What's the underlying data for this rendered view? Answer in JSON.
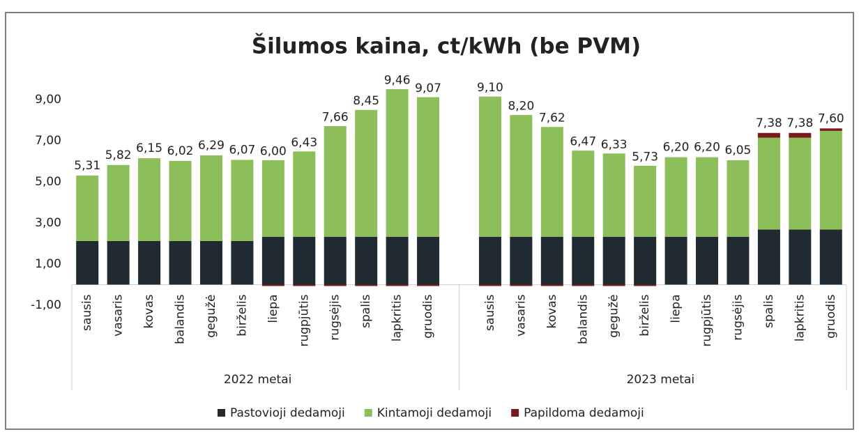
{
  "chart_data": {
    "type": "stacked_bar",
    "title": "Šilumos kaina, ct/kWh (be PVM)",
    "categories": [
      "sausis",
      "vasaris",
      "kovas",
      "balandis",
      "gegužė",
      "birželis",
      "liepa",
      "rugpjūtis",
      "rugsėjis",
      "spalis",
      "lapkritis",
      "gruodis",
      "sausis",
      "vasaris",
      "kovas",
      "balandis",
      "gegužė",
      "birželis",
      "liepa",
      "rugpjūtis",
      "rugsėjis",
      "spalis",
      "lapkritis",
      "gruodis"
    ],
    "groups": [
      "2022 metai",
      "2023 metai"
    ],
    "series": [
      {
        "name": "Pastovioji dedamoji",
        "color": "#1f2a33",
        "values": [
          2.12,
          2.12,
          2.12,
          2.12,
          2.12,
          2.12,
          2.33,
          2.33,
          2.33,
          2.33,
          2.33,
          2.33,
          2.33,
          2.33,
          2.33,
          2.33,
          2.33,
          2.33,
          2.33,
          2.33,
          2.33,
          2.68,
          2.68,
          2.68
        ]
      },
      {
        "name": "Kintamoji dedamoji",
        "color": "#8cbf5a",
        "values": [
          3.19,
          3.7,
          4.03,
          3.9,
          4.17,
          3.95,
          3.72,
          4.15,
          5.38,
          6.17,
          7.18,
          6.79,
          6.82,
          5.92,
          5.34,
          4.19,
          4.05,
          3.45,
          3.87,
          3.87,
          3.72,
          4.47,
          4.47,
          4.8
        ]
      },
      {
        "name": "Papildoma dedamoji",
        "color": "#7a1a1a",
        "values": [
          0,
          0,
          0,
          0,
          0,
          0,
          -0.05,
          -0.05,
          -0.05,
          -0.05,
          -0.05,
          -0.05,
          -0.05,
          -0.05,
          -0.05,
          -0.05,
          -0.05,
          -0.05,
          0,
          0,
          0,
          0.23,
          0.23,
          0.12
        ]
      }
    ],
    "totals": {
      "values": [
        5.31,
        5.82,
        6.15,
        6.02,
        6.29,
        6.07,
        6.0,
        6.43,
        7.66,
        8.45,
        9.46,
        9.07,
        9.1,
        8.2,
        7.62,
        6.47,
        6.33,
        5.73,
        6.2,
        6.2,
        6.05,
        7.38,
        7.38,
        7.6
      ],
      "value_labels": [
        "5,31",
        "5,82",
        "6,15",
        "6,02",
        "6,29",
        "6,07",
        "6,00",
        "6,43",
        "7,66",
        "8,45",
        "9,46",
        "9,07",
        "9,10",
        "8,20",
        "7,62",
        "6,47",
        "6,33",
        "5,73",
        "6,20",
        "6,20",
        "6,05",
        "7,38",
        "7,38",
        "7,60"
      ]
    },
    "ylim": [
      -1,
      10
    ],
    "yticks": [
      {
        "value": -1,
        "label": "-1,00"
      },
      {
        "value": 1,
        "label": "1,00"
      },
      {
        "value": 3,
        "label": "3,00"
      },
      {
        "value": 5,
        "label": "5,00"
      },
      {
        "value": 7,
        "label": "7,00"
      },
      {
        "value": 9,
        "label": "9,00"
      }
    ],
    "legend": "bottom"
  }
}
